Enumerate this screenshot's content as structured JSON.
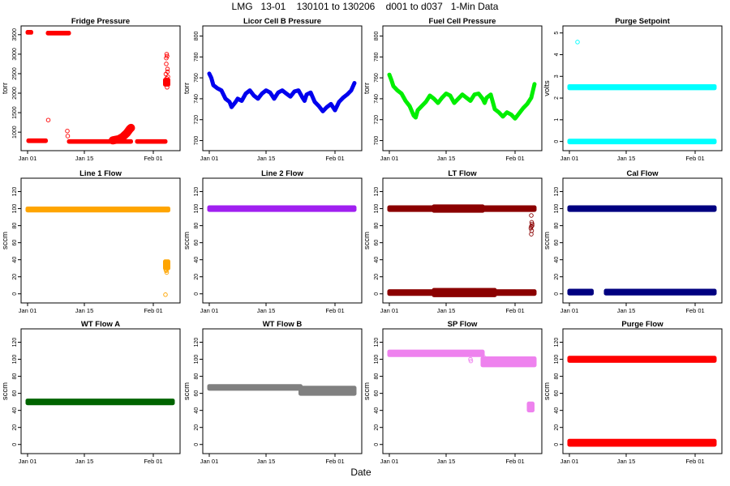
{
  "figure": {
    "title": "LMG   13-01    130101 to 130206    d001 to d037   1-Min Data",
    "xlabel": "Date"
  },
  "chart_data": [
    {
      "type": "scatter",
      "title": "Fridge Pressure",
      "ylabel": "torr",
      "ylim": [
        650,
        3600
      ],
      "yticks": [
        1000,
        1500,
        2000,
        2500,
        3000,
        3500
      ],
      "xlim": [
        1,
        37
      ],
      "xticks": [
        {
          "day": 1,
          "label": "Jan 01"
        },
        {
          "day": 15,
          "label": "Jan 15"
        },
        {
          "day": 32,
          "label": "Feb 01"
        }
      ],
      "color": "#ff0000",
      "bands": [
        {
          "x0": 1,
          "x1": 1.9,
          "y": 3560,
          "h": 16
        },
        {
          "x0": 1.2,
          "x1": 5.5,
          "y": 780,
          "h": 16
        },
        {
          "x0": 6.0,
          "x1": 11.2,
          "y": 3540,
          "h": 16
        },
        {
          "x0": 11.2,
          "x1": 26.5,
          "y": 760,
          "h": 14
        },
        {
          "x0": 28.0,
          "x1": 35.0,
          "y": 760,
          "h": 14
        },
        {
          "x0": 34.9,
          "x1": 35.7,
          "y": 2280,
          "h": 120
        }
      ],
      "curves": [
        {
          "points": [
            [
              22,
              790
            ],
            [
              23.5,
              820
            ],
            [
              24.5,
              880
            ],
            [
              25.5,
              980
            ],
            [
              26.2,
              1080
            ],
            [
              26.5,
              1110
            ]
          ],
          "width": 10
        }
      ],
      "points": [
        [
          6.1,
          1310
        ],
        [
          10.8,
          1030
        ],
        [
          10.9,
          900
        ],
        [
          35.3,
          3000
        ],
        [
          35.4,
          2950
        ],
        [
          35.2,
          2750
        ],
        [
          35.5,
          2620
        ],
        [
          35.1,
          2490
        ],
        [
          35.6,
          2420
        ],
        [
          35.3,
          2380
        ],
        [
          35.2,
          2900
        ],
        [
          35.5,
          2550
        ],
        [
          35.4,
          2150
        ]
      ]
    },
    {
      "type": "scatter",
      "title": "Licor Cell B Pressure",
      "ylabel": "torr",
      "ylim": [
        695,
        805
      ],
      "yticks": [
        700,
        720,
        740,
        760,
        780,
        800
      ],
      "xlim": [
        1,
        37
      ],
      "xticks": [
        {
          "day": 1,
          "label": "Jan 01"
        },
        {
          "day": 15,
          "label": "Jan 15"
        },
        {
          "day": 32,
          "label": "Feb 01"
        }
      ],
      "color": "#0000ee",
      "curves": [
        {
          "points": [
            [
              1,
              764
            ],
            [
              1.5,
              760
            ],
            [
              2,
              753
            ],
            [
              3,
              750
            ],
            [
              4,
              748
            ],
            [
              5,
              740
            ],
            [
              6,
              737
            ],
            [
              6.5,
              732
            ],
            [
              7.5,
              737
            ],
            [
              8,
              740
            ],
            [
              9,
              738
            ],
            [
              10,
              745
            ],
            [
              11,
              748
            ],
            [
              12,
              743
            ],
            [
              13,
              740
            ],
            [
              14,
              745
            ],
            [
              15,
              748
            ],
            [
              16,
              746
            ],
            [
              17,
              740
            ],
            [
              18,
              746
            ],
            [
              19,
              748
            ],
            [
              20,
              745
            ],
            [
              21,
              742
            ],
            [
              22,
              747
            ],
            [
              23,
              748
            ],
            [
              24,
              741
            ],
            [
              24.5,
              738
            ],
            [
              25,
              744
            ],
            [
              26,
              746
            ],
            [
              27,
              737
            ],
            [
              28,
              733
            ],
            [
              29,
              728
            ],
            [
              30,
              732
            ],
            [
              31,
              735
            ],
            [
              32,
              729
            ],
            [
              33,
              737
            ],
            [
              34,
              741
            ],
            [
              35,
              744
            ],
            [
              36,
              748
            ],
            [
              36.8,
              755
            ]
          ],
          "width": 5
        }
      ],
      "points": []
    },
    {
      "type": "scatter",
      "title": "Fuel Cell Pressure",
      "ylabel": "torr",
      "ylim": [
        695,
        805
      ],
      "yticks": [
        700,
        720,
        740,
        760,
        780,
        800
      ],
      "xlim": [
        1,
        37
      ],
      "xticks": [
        {
          "day": 1,
          "label": "Jan 01"
        },
        {
          "day": 15,
          "label": "Jan 15"
        },
        {
          "day": 32,
          "label": "Feb 01"
        }
      ],
      "color": "#00ee00",
      "curves": [
        {
          "points": [
            [
              1,
              763
            ],
            [
              1.5,
              758
            ],
            [
              2,
              752
            ],
            [
              3,
              748
            ],
            [
              4,
              745
            ],
            [
              5,
              738
            ],
            [
              6,
              733
            ],
            [
              7,
              724
            ],
            [
              7.5,
              722
            ],
            [
              8,
              729
            ],
            [
              9,
              733
            ],
            [
              10,
              737
            ],
            [
              11,
              743
            ],
            [
              12,
              740
            ],
            [
              13,
              736
            ],
            [
              14,
              741
            ],
            [
              15,
              745
            ],
            [
              16,
              743
            ],
            [
              17,
              736
            ],
            [
              18,
              740
            ],
            [
              19,
              744
            ],
            [
              20,
              741
            ],
            [
              21,
              738
            ],
            [
              22,
              744
            ],
            [
              23,
              745
            ],
            [
              24,
              740
            ],
            [
              24.5,
              736
            ],
            [
              25,
              741
            ],
            [
              26,
              744
            ],
            [
              27,
              730
            ],
            [
              28,
              727
            ],
            [
              29,
              723
            ],
            [
              30,
              727
            ],
            [
              31,
              725
            ],
            [
              32,
              721
            ],
            [
              33,
              726
            ],
            [
              34,
              731
            ],
            [
              35,
              735
            ],
            [
              36,
              741
            ],
            [
              36.8,
              754
            ]
          ],
          "width": 5
        }
      ],
      "points": []
    },
    {
      "type": "scatter",
      "title": "Purge Setpoint",
      "ylabel": "volts",
      "ylim": [
        -0.2,
        5.1
      ],
      "yticks": [
        0,
        1,
        2,
        3,
        4,
        5
      ],
      "xlim": [
        1,
        37
      ],
      "xticks": [
        {
          "day": 1,
          "label": "Jan 01"
        },
        {
          "day": 15,
          "label": "Jan 15"
        },
        {
          "day": 32,
          "label": "Feb 01"
        }
      ],
      "color": "#00ffff",
      "bands": [
        {
          "x0": 1,
          "x1": 36.8,
          "y": 2.5,
          "h": 0.09
        },
        {
          "x0": 1,
          "x1": 36.8,
          "y": 0.0,
          "h": 0.07
        }
      ],
      "points": [
        [
          3.0,
          4.58
        ]
      ]
    },
    {
      "type": "scatter",
      "title": "Line 1 Flow",
      "ylabel": "sccm",
      "ylim": [
        -5,
        130
      ],
      "yticks": [
        0,
        20,
        40,
        60,
        80,
        100,
        120
      ],
      "xlim": [
        1,
        37
      ],
      "xticks": [
        {
          "day": 1,
          "label": "Jan 01"
        },
        {
          "day": 15,
          "label": "Jan 15"
        },
        {
          "day": 32,
          "label": "Feb 01"
        }
      ],
      "color": "#ffa500",
      "bands": [
        {
          "x0": 1,
          "x1": 35.7,
          "y": 99,
          "h": 2.2
        },
        {
          "x0": 34.9,
          "x1": 35.7,
          "y": 34,
          "h": 8
        }
      ],
      "points": [
        [
          35.1,
          28
        ],
        [
          35.3,
          25
        ],
        [
          35.2,
          27
        ],
        [
          35.4,
          30
        ],
        [
          35.0,
          -1
        ]
      ]
    },
    {
      "type": "scatter",
      "title": "Line 2 Flow",
      "ylabel": "sccm",
      "ylim": [
        -5,
        130
      ],
      "yticks": [
        0,
        20,
        40,
        60,
        80,
        100,
        120
      ],
      "xlim": [
        1,
        37
      ],
      "xticks": [
        {
          "day": 1,
          "label": "Jan 01"
        },
        {
          "day": 15,
          "label": "Jan 15"
        },
        {
          "day": 32,
          "label": "Feb 01"
        }
      ],
      "color": "#a020f0",
      "bands": [
        {
          "x0": 1,
          "x1": 36.8,
          "y": 100,
          "h": 3
        }
      ],
      "points": []
    },
    {
      "type": "scatter",
      "title": "LT Flow",
      "ylabel": "sccm",
      "ylim": [
        -5,
        130
      ],
      "yticks": [
        0,
        20,
        40,
        60,
        80,
        100,
        120
      ],
      "xlim": [
        1,
        37
      ],
      "xticks": [
        {
          "day": 1,
          "label": "Jan 01"
        },
        {
          "day": 15,
          "label": "Jan 15"
        },
        {
          "day": 32,
          "label": "Feb 01"
        }
      ],
      "color": "#8b0000",
      "bands": [
        {
          "x0": 1,
          "x1": 36.8,
          "y": 100,
          "h": 3
        },
        {
          "x0": 12,
          "x1": 24,
          "y": 100,
          "h": 5
        },
        {
          "x0": 1,
          "x1": 36.8,
          "y": 1.5,
          "h": 3
        },
        {
          "x0": 12,
          "x1": 27,
          "y": 1.5,
          "h": 6
        }
      ],
      "points": [
        [
          36.0,
          92
        ],
        [
          36.1,
          84
        ],
        [
          36.2,
          82
        ],
        [
          36.0,
          79
        ],
        [
          35.9,
          77
        ],
        [
          36.1,
          74
        ],
        [
          36.2,
          80
        ],
        [
          36.0,
          70
        ]
      ]
    },
    {
      "type": "scatter",
      "title": "Cal Flow",
      "ylabel": "sccm",
      "ylim": [
        -5,
        130
      ],
      "yticks": [
        0,
        20,
        40,
        60,
        80,
        100,
        120
      ],
      "xlim": [
        1,
        37
      ],
      "xticks": [
        {
          "day": 1,
          "label": "Jan 01"
        },
        {
          "day": 15,
          "label": "Jan 15"
        },
        {
          "day": 32,
          "label": "Feb 01"
        }
      ],
      "color": "#000080",
      "bands": [
        {
          "x0": 1,
          "x1": 36.8,
          "y": 100,
          "h": 3
        },
        {
          "x0": 1,
          "x1": 6.5,
          "y": 2,
          "h": 3
        },
        {
          "x0": 10,
          "x1": 36.8,
          "y": 2,
          "h": 3
        }
      ],
      "points": []
    },
    {
      "type": "scatter",
      "title": "WT Flow A",
      "ylabel": "sccm",
      "ylim": [
        -5,
        130
      ],
      "yticks": [
        0,
        20,
        40,
        60,
        80,
        100,
        120
      ],
      "xlim": [
        1,
        37
      ],
      "xticks": [
        {
          "day": 1,
          "label": "Jan 01"
        },
        {
          "day": 15,
          "label": "Jan 15"
        },
        {
          "day": 32,
          "label": "Feb 01"
        }
      ],
      "color": "#006400",
      "bands": [
        {
          "x0": 1,
          "x1": 36.8,
          "y": 50,
          "h": 3
        }
      ],
      "points": []
    },
    {
      "type": "scatter",
      "title": "WT Flow B",
      "ylabel": "sccm",
      "ylim": [
        -5,
        130
      ],
      "yticks": [
        0,
        20,
        40,
        60,
        80,
        100,
        120
      ],
      "xlim": [
        1,
        37
      ],
      "xticks": [
        {
          "day": 1,
          "label": "Jan 01"
        },
        {
          "day": 15,
          "label": "Jan 15"
        },
        {
          "day": 32,
          "label": "Feb 01"
        }
      ],
      "color": "#808080",
      "bands": [
        {
          "x0": 1,
          "x1": 23.5,
          "y": 67,
          "h": 3
        },
        {
          "x0": 23.5,
          "x1": 36.8,
          "y": 63,
          "h": 7
        }
      ],
      "points": []
    },
    {
      "type": "scatter",
      "title": "SP Flow",
      "ylabel": "sccm",
      "ylim": [
        -5,
        130
      ],
      "yticks": [
        0,
        20,
        40,
        60,
        80,
        100,
        120
      ],
      "xlim": [
        1,
        37
      ],
      "xticks": [
        {
          "day": 1,
          "label": "Jan 01"
        },
        {
          "day": 15,
          "label": "Jan 15"
        },
        {
          "day": 32,
          "label": "Feb 01"
        }
      ],
      "color": "#ee82ee",
      "bands": [
        {
          "x0": 1,
          "x1": 24,
          "y": 107,
          "h": 4
        },
        {
          "x0": 24,
          "x1": 36.8,
          "y": 97,
          "h": 8
        },
        {
          "x0": 35.4,
          "x1": 36.3,
          "y": 44,
          "h": 8
        }
      ],
      "points": [
        [
          21,
          100
        ],
        [
          21.1,
          98
        ],
        [
          24.2,
          103
        ],
        [
          26,
          100
        ],
        [
          30,
          99
        ]
      ]
    },
    {
      "type": "scatter",
      "title": "Purge Flow",
      "ylabel": "sccm",
      "ylim": [
        -5,
        130
      ],
      "yticks": [
        0,
        20,
        40,
        60,
        80,
        100,
        120
      ],
      "xlim": [
        1,
        37
      ],
      "xticks": [
        {
          "day": 1,
          "label": "Jan 01"
        },
        {
          "day": 15,
          "label": "Jan 15"
        },
        {
          "day": 32,
          "label": "Feb 01"
        }
      ],
      "color": "#ff0000",
      "bands": [
        {
          "x0": 1,
          "x1": 36.8,
          "y": 100,
          "h": 3.5
        },
        {
          "x0": 1,
          "x1": 36.8,
          "y": 2,
          "h": 4.5
        }
      ],
      "points": []
    }
  ]
}
